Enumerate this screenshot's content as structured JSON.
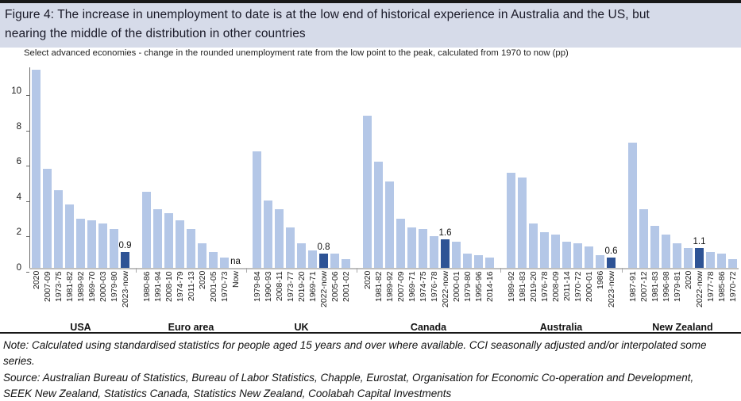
{
  "header": {
    "title": "Figure 4: The increase in unemployment to date is at the low end of historical experience in Australia and the US, but nearing the middle of the distribution in other countries",
    "subtitle": "Select advanced economies - change in the rounded unemployment rate from the low point to the peak, calculated from 1970 to now (pp)"
  },
  "notes": {
    "note": "Note: Calculated using standardised statistics for people aged 15 years and over where available.  CCI seasonally adjusted and/or interpolated some series.",
    "source": "Source: Australian Bureau of Statistics, Bureau of Labor Statistics, Chapple, Eurostat, Organisation for Economic Co-operation and Development, SEEK New Zealand, Statistics Canada, Statistics New Zealand, Coolabah Capital Investments"
  },
  "chart_data": {
    "type": "bar",
    "title": "Change in rounded unemployment rate from low point to peak (pp)",
    "xlabel": "",
    "ylabel": "",
    "ylim": [
      0,
      11.35
    ],
    "yticks": [
      0,
      2,
      4,
      6,
      8,
      10
    ],
    "grid": false,
    "legend": "none",
    "colors": {
      "historical_bar": "#b4c7e7",
      "current_bar": "#2e5395"
    },
    "groups": [
      {
        "country": "USA",
        "bars": [
          {
            "label": "2020",
            "value": 11.2
          },
          {
            "label": "2007-09",
            "value": 5.6
          },
          {
            "label": "1973-75",
            "value": 4.4
          },
          {
            "label": "1981-82",
            "value": 3.6
          },
          {
            "label": "1989-92",
            "value": 2.8
          },
          {
            "label": "1969-70",
            "value": 2.7
          },
          {
            "label": "2000-03",
            "value": 2.5
          },
          {
            "label": "1979-80",
            "value": 2.2
          },
          {
            "label": "2023-now",
            "value": 0.9,
            "current": true,
            "data_label": "0.9"
          }
        ]
      },
      {
        "country": "Euro area",
        "bars": [
          {
            "label": "1980-86",
            "value": 4.3
          },
          {
            "label": "1991-94",
            "value": 3.3
          },
          {
            "label": "2008-10",
            "value": 3.1
          },
          {
            "label": "1974-79",
            "value": 2.7
          },
          {
            "label": "2011-13",
            "value": 2.2
          },
          {
            "label": "2020",
            "value": 1.4
          },
          {
            "label": "2001-05",
            "value": 0.9
          },
          {
            "label": "1970-73",
            "value": 0.6
          },
          {
            "label": "Now",
            "value": null,
            "data_label": "na"
          }
        ]
      },
      {
        "country": "UK",
        "bars": [
          {
            "label": "1979-84",
            "value": 6.6
          },
          {
            "label": "1990-93",
            "value": 3.8
          },
          {
            "label": "2008-11",
            "value": 3.3
          },
          {
            "label": "1973-77",
            "value": 2.3
          },
          {
            "label": "2019-20",
            "value": 1.4
          },
          {
            "label": "1969-71",
            "value": 1.0
          },
          {
            "label": "2022-now",
            "value": 0.8,
            "current": true,
            "data_label": "0.8"
          },
          {
            "label": "2005-06",
            "value": 0.8
          },
          {
            "label": "2001-02",
            "value": 0.5
          }
        ]
      },
      {
        "country": "Canada",
        "bars": [
          {
            "label": "2020",
            "value": 8.6
          },
          {
            "label": "1981-82",
            "value": 6.0
          },
          {
            "label": "1989-92",
            "value": 4.9
          },
          {
            "label": "2007-09",
            "value": 2.8
          },
          {
            "label": "1969-71",
            "value": 2.3
          },
          {
            "label": "1974-75",
            "value": 2.2
          },
          {
            "label": "1976-78",
            "value": 1.8
          },
          {
            "label": "2022-now",
            "value": 1.6,
            "current": true,
            "data_label": "1.6"
          },
          {
            "label": "2000-01",
            "value": 1.5
          },
          {
            "label": "1979-80",
            "value": 0.8
          },
          {
            "label": "1995-96",
            "value": 0.7
          },
          {
            "label": "2014-16",
            "value": 0.6
          }
        ]
      },
      {
        "country": "Australia",
        "bars": [
          {
            "label": "1989-92",
            "value": 5.4
          },
          {
            "label": "1981-83",
            "value": 5.1
          },
          {
            "label": "2019-20",
            "value": 2.5
          },
          {
            "label": "1976-78",
            "value": 2.0
          },
          {
            "label": "2008-09",
            "value": 1.9
          },
          {
            "label": "2011-14",
            "value": 1.5
          },
          {
            "label": "1970-72",
            "value": 1.4
          },
          {
            "label": "2000-01",
            "value": 1.2
          },
          {
            "label": "1986",
            "value": 0.7
          },
          {
            "label": "2023-now",
            "value": 0.6,
            "current": true,
            "data_label": "0.6"
          }
        ]
      },
      {
        "country": "New Zealand",
        "bars": [
          {
            "label": "1987-91",
            "value": 7.1
          },
          {
            "label": "2007-12",
            "value": 3.3
          },
          {
            "label": "1981-83",
            "value": 2.4
          },
          {
            "label": "1996-98",
            "value": 1.9
          },
          {
            "label": "1979-81",
            "value": 1.4
          },
          {
            "label": "2020",
            "value": 1.1
          },
          {
            "label": "2022-now",
            "value": 1.1,
            "current": true,
            "data_label": "1.1"
          },
          {
            "label": "1977-78",
            "value": 0.9
          },
          {
            "label": "1985-86",
            "value": 0.8
          },
          {
            "label": "1970-72",
            "value": 0.5
          }
        ]
      }
    ]
  }
}
